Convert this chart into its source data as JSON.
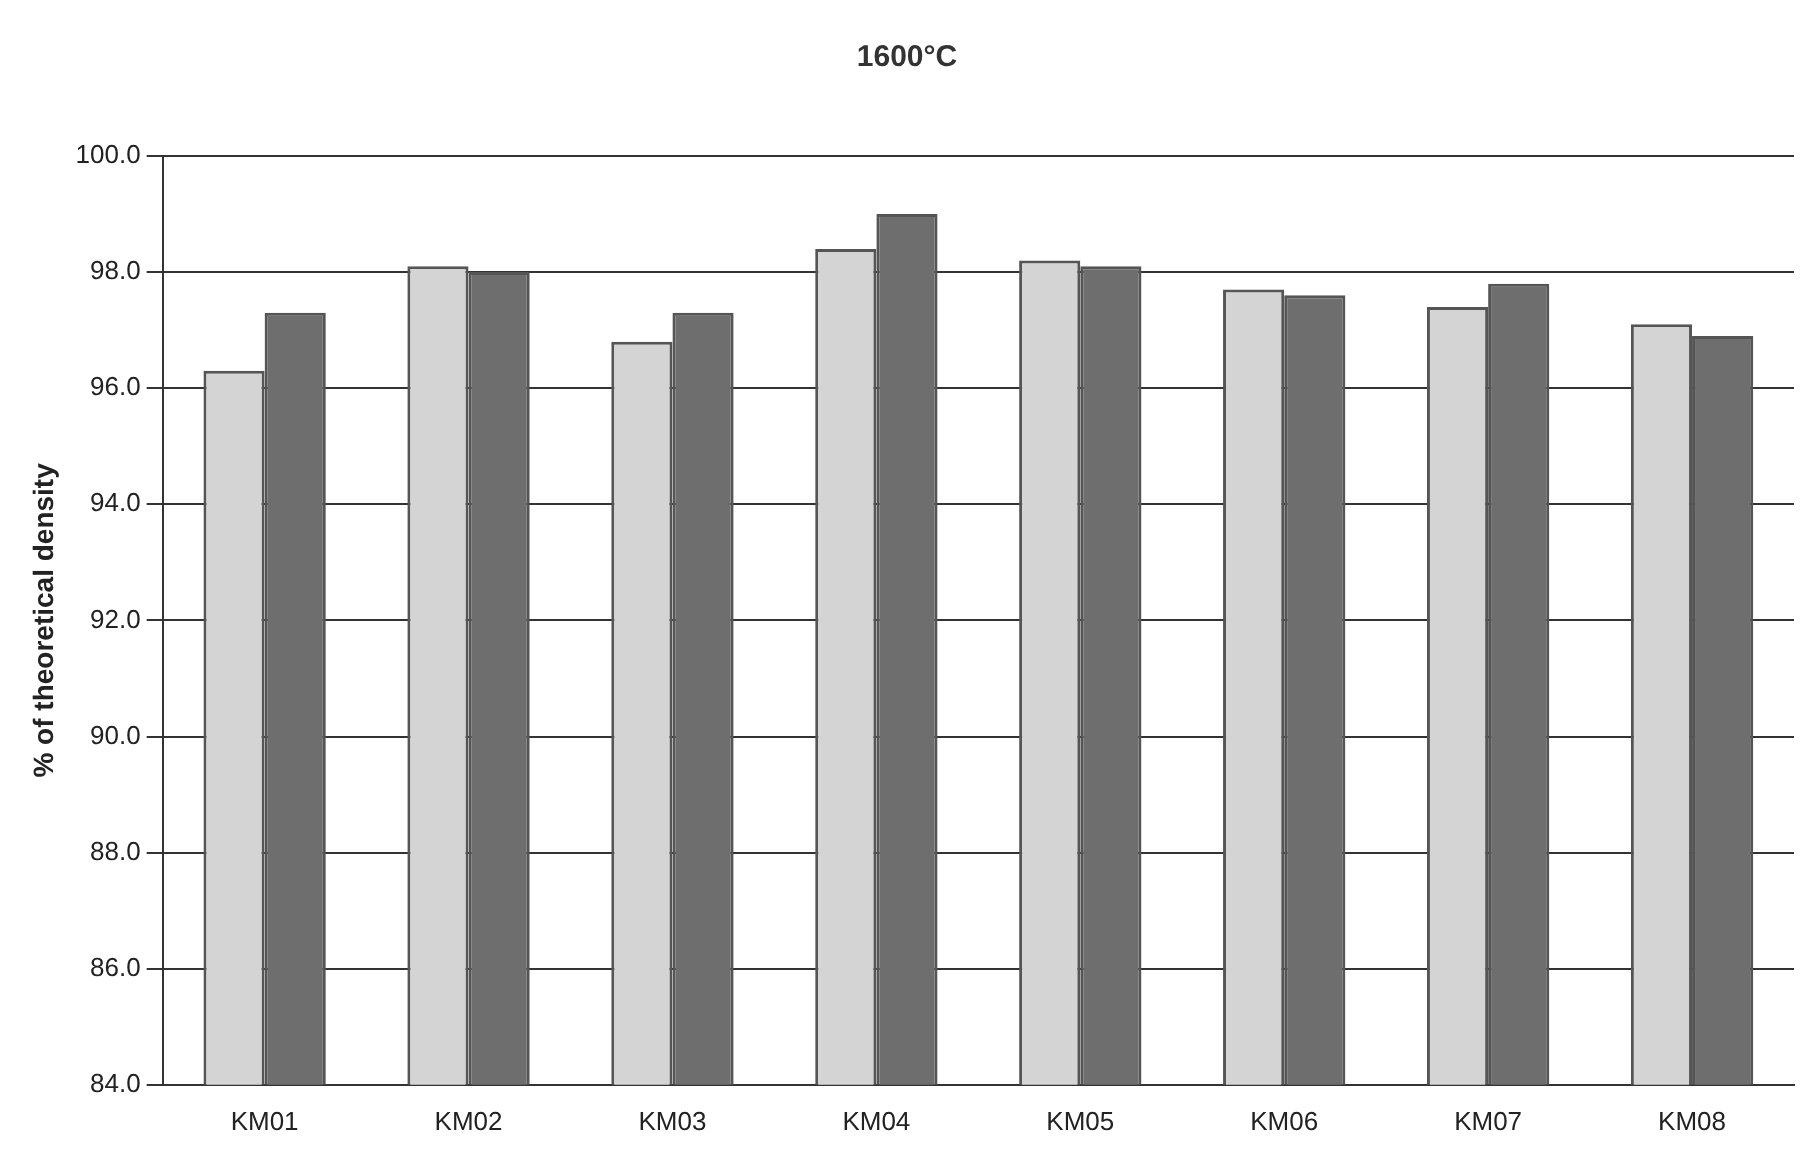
{
  "chart_data": {
    "type": "bar",
    "title": "1600°C",
    "ylabel": "% of theoretical density",
    "categories": [
      "KM01",
      "KM02",
      "KM03",
      "KM04",
      "KM05",
      "KM06",
      "KM07",
      "KM08"
    ],
    "series": [
      {
        "color": "#d4d4d4",
        "values": [
          96.3,
          98.1,
          96.8,
          98.4,
          98.2,
          97.7,
          97.4,
          97.1
        ]
      },
      {
        "color": "#6e6e6e",
        "values": [
          97.3,
          98.0,
          97.3,
          99.0,
          98.1,
          97.6,
          97.8,
          96.9
        ]
      }
    ],
    "ylim": [
      84,
      100
    ],
    "yticks": [
      {
        "value": 84,
        "label": "84.0"
      },
      {
        "value": 86,
        "label": "86.0"
      },
      {
        "value": 88,
        "label": "88.0"
      },
      {
        "value": 90,
        "label": "90.0"
      },
      {
        "value": 92,
        "label": "92.0"
      },
      {
        "value": 94,
        "label": "94.0"
      },
      {
        "value": 96,
        "label": "96.0"
      },
      {
        "value": 98,
        "label": "98.0"
      },
      {
        "value": 100,
        "label": "100.0"
      }
    ],
    "grid": "y",
    "legend": false
  }
}
